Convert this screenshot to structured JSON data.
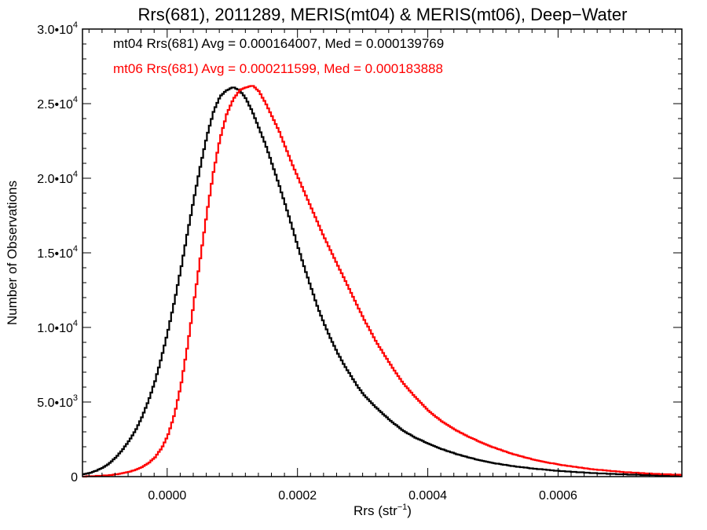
{
  "chart_data": {
    "type": "line",
    "title": "Rrs(681), 2011289, MERIS(mt04) & MERIS(mt06), Deep−Water",
    "xlabel": "Rrs (str",
    "xlabel_sup": "−1",
    "xlabel_close": ")",
    "ylabel": "Number of Observations",
    "xlim": [
      -0.00013,
      0.00079
    ],
    "ylim": [
      0,
      30000
    ],
    "x_ticks": [
      {
        "value": 0.0,
        "label": "0.0000"
      },
      {
        "value": 0.0002,
        "label": "0.0002"
      },
      {
        "value": 0.0004,
        "label": "0.0004"
      },
      {
        "value": 0.0006,
        "label": "0.0006"
      }
    ],
    "y_ticks": [
      {
        "value": 0,
        "mant": "0",
        "exp": ""
      },
      {
        "value": 5000,
        "mant": "5.0•10",
        "exp": "3"
      },
      {
        "value": 10000,
        "mant": "1.0•10",
        "exp": "4"
      },
      {
        "value": 15000,
        "mant": "1.5•10",
        "exp": "4"
      },
      {
        "value": 20000,
        "mant": "2.0•10",
        "exp": "4"
      },
      {
        "value": 25000,
        "mant": "2.5•10",
        "exp": "4"
      },
      {
        "value": 30000,
        "mant": "3.0•10",
        "exp": "4"
      }
    ],
    "grid": false,
    "legend_position": "top-left",
    "series": [
      {
        "label": "mt04 Rrs(681) Avg = 0.000164007, Med = 0.000139769",
        "color": "#000000",
        "x": [
          -0.00013,
          -0.00012,
          -0.00011,
          -0.0001,
          -9e-05,
          -8e-05,
          -7e-05,
          -6e-05,
          -5e-05,
          -4e-05,
          -3e-05,
          -2e-05,
          -1e-05,
          0.0,
          1e-05,
          2e-05,
          3e-05,
          4e-05,
          5e-05,
          6e-05,
          7e-05,
          8e-05,
          9e-05,
          0.0001,
          0.00011,
          0.00012,
          0.00013,
          0.00014,
          0.00015,
          0.00016,
          0.00017,
          0.00018,
          0.00019,
          0.0002,
          0.00021,
          0.00022,
          0.00023,
          0.00024,
          0.00025,
          0.00026,
          0.00027,
          0.00028,
          0.00029,
          0.0003,
          0.00032,
          0.00034,
          0.00036,
          0.00038,
          0.0004,
          0.00042,
          0.00044,
          0.00046,
          0.00048,
          0.0005,
          0.00053,
          0.00056,
          0.0006,
          0.00065,
          0.0007,
          0.00075,
          0.00079
        ],
        "y": [
          150,
          250,
          400,
          600,
          900,
          1300,
          1800,
          2400,
          3100,
          4000,
          5100,
          6400,
          8000,
          9800,
          11800,
          14000,
          16400,
          18700,
          20900,
          22900,
          24500,
          25500,
          25900,
          26100,
          25900,
          25300,
          24400,
          23300,
          22200,
          20900,
          19600,
          18200,
          16800,
          15300,
          13900,
          12600,
          11300,
          10200,
          9200,
          8300,
          7500,
          6800,
          6100,
          5500,
          4600,
          3800,
          3100,
          2600,
          2200,
          1850,
          1550,
          1300,
          1080,
          900,
          700,
          540,
          380,
          240,
          150,
          90,
          60
        ]
      },
      {
        "label": "mt06 Rrs(681) Avg = 0.000211599, Med = 0.000183888",
        "color": "#ff0000",
        "x": [
          -0.00013,
          -0.00012,
          -0.00011,
          -0.0001,
          -9e-05,
          -8e-05,
          -7e-05,
          -6e-05,
          -5e-05,
          -4e-05,
          -3e-05,
          -2e-05,
          -1e-05,
          0.0,
          1e-05,
          2e-05,
          3e-05,
          4e-05,
          5e-05,
          6e-05,
          7e-05,
          8e-05,
          9e-05,
          0.0001,
          0.00011,
          0.00012,
          0.00013,
          0.00014,
          0.00015,
          0.00016,
          0.00017,
          0.00018,
          0.00019,
          0.0002,
          0.00021,
          0.00022,
          0.00023,
          0.00024,
          0.00025,
          0.00026,
          0.00027,
          0.00028,
          0.00029,
          0.0003,
          0.00032,
          0.00034,
          0.00036,
          0.00038,
          0.0004,
          0.00042,
          0.00044,
          0.00046,
          0.00048,
          0.0005,
          0.00053,
          0.00056,
          0.0006,
          0.00065,
          0.0007,
          0.00075,
          0.00079
        ],
        "y": [
          10,
          20,
          40,
          60,
          100,
          150,
          220,
          320,
          460,
          650,
          900,
          1300,
          1900,
          2800,
          4200,
          6200,
          8800,
          11800,
          14800,
          17800,
          20500,
          22700,
          24300,
          25300,
          25900,
          26100,
          26200,
          25800,
          25000,
          24100,
          23200,
          22100,
          21000,
          20000,
          19000,
          18000,
          17000,
          16000,
          15100,
          14200,
          13300,
          12400,
          11500,
          10600,
          9000,
          7600,
          6300,
          5300,
          4400,
          3700,
          3150,
          2700,
          2300,
          1950,
          1500,
          1150,
          800,
          500,
          300,
          180,
          110
        ]
      }
    ]
  }
}
